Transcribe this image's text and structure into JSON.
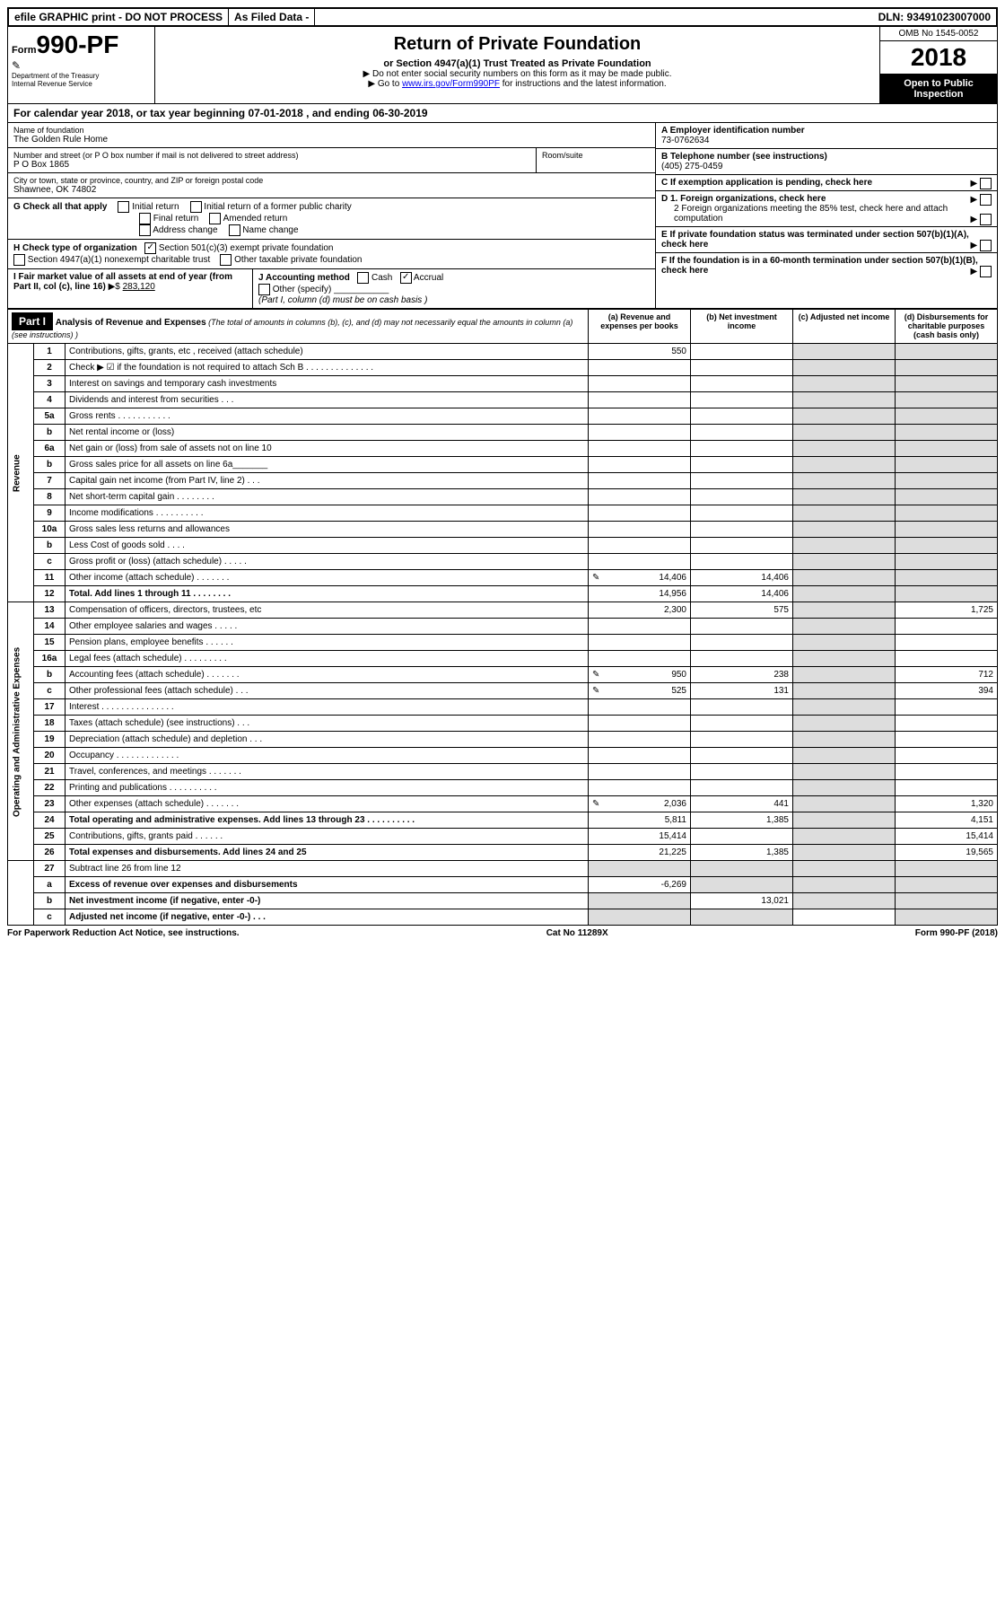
{
  "topbar": {
    "left": "efile GRAPHIC print - DO NOT PROCESS",
    "mid": "As Filed Data -",
    "right": "DLN: 93491023007000"
  },
  "header": {
    "form_prefix": "Form",
    "form_num": "990-PF",
    "dept1": "Department of the Treasury",
    "dept2": "Internal Revenue Service",
    "title": "Return of Private Foundation",
    "subtitle": "or Section 4947(a)(1) Trust Treated as Private Foundation",
    "warn": "▶ Do not enter social security numbers on this form as it may be made public.",
    "goto_prefix": "▶ Go to ",
    "goto_link": "www.irs.gov/Form990PF",
    "goto_suffix": " for instructions and the latest information.",
    "omb": "OMB No 1545-0052",
    "year": "2018",
    "public": "Open to Public Inspection"
  },
  "calyear": {
    "text1": "For calendar year 2018, or tax year beginning ",
    "begin": "07-01-2018",
    "text2": " , and ending ",
    "end": "06-30-2019"
  },
  "org": {
    "name_label": "Name of foundation",
    "name": "The Golden Rule Home",
    "addr_label": "Number and street (or P O  box number if mail is not delivered to street address)",
    "addr": "P O Box 1865",
    "room_label": "Room/suite",
    "city_label": "City or town, state or province, country, and ZIP or foreign postal code",
    "city": "Shawnee, OK  74802"
  },
  "right": {
    "A_label": "A Employer identification number",
    "A_val": "73-0762634",
    "B_label": "B Telephone number (see instructions)",
    "B_val": "(405) 275-0459",
    "C_label": "C If exemption application is pending, check here",
    "D1": "D 1. Foreign organizations, check here",
    "D2a": "2 Foreign organizations meeting the 85% test, check here and attach computation",
    "E": "E  If private foundation status was terminated under section 507(b)(1)(A), check here",
    "F": "F  If the foundation is in a 60-month termination under section 507(b)(1)(B), check here"
  },
  "G": {
    "label": "G Check all that apply",
    "opts": [
      "Initial return",
      "Initial return of a former public charity",
      "Final return",
      "Amended return",
      "Address change",
      "Name change"
    ]
  },
  "H": {
    "label": "H Check type of organization",
    "opt1": "Section 501(c)(3) exempt private foundation",
    "opt2": "Section 4947(a)(1) nonexempt charitable trust",
    "opt3": "Other taxable private foundation"
  },
  "I": {
    "label1": "I Fair market value of all assets at end of year (from Part II, col  (c), line 16)",
    "val_label": "▶$ ",
    "val": "283,120"
  },
  "J": {
    "label": "J Accounting method",
    "cash": "Cash",
    "accrual": "Accrual",
    "other": "Other (specify)",
    "note": "(Part I, column (d) must be on cash basis )"
  },
  "part1": {
    "tab": "Part I",
    "title": "Analysis of Revenue and Expenses",
    "note": " (The total of amounts in columns (b), (c), and (d) may not necessarily equal the amounts in column (a) (see instructions) )",
    "col_a": "(a) Revenue and expenses per books",
    "col_b": "(b) Net investment income",
    "col_c": "(c) Adjusted net income",
    "col_d": "(d) Disbursements for charitable purposes (cash basis only)"
  },
  "side_rev": "Revenue",
  "side_exp": "Operating and Administrative Expenses",
  "rows": [
    {
      "n": "1",
      "d": "Contributions, gifts, grants, etc , received (attach schedule)",
      "a": "550"
    },
    {
      "n": "2",
      "d": "Check ▶ ☑ if the foundation is not required to attach Sch  B   .  .  .  .  .  .  .  .  .  .  .  .  .  ."
    },
    {
      "n": "3",
      "d": "Interest on savings and temporary cash investments"
    },
    {
      "n": "4",
      "d": "Dividends and interest from securities   .  .  ."
    },
    {
      "n": "5a",
      "d": "Gross rents   .  .  .  .  .  .  .  .  .  .  ."
    },
    {
      "n": "b",
      "d": "Net rental income or (loss)  "
    },
    {
      "n": "6a",
      "d": "Net gain or (loss) from sale of assets not on line 10"
    },
    {
      "n": "b",
      "d": "Gross sales price for all assets on line 6a_______"
    },
    {
      "n": "7",
      "d": "Capital gain net income (from Part IV, line 2)  .  .  ."
    },
    {
      "n": "8",
      "d": "Net short-term capital gain  .  .  .  .  .  .  .  ."
    },
    {
      "n": "9",
      "d": "Income modifications .  .  .  .  .  .  .  .  .  ."
    },
    {
      "n": "10a",
      "d": "Gross sales less returns and allowances"
    },
    {
      "n": "b",
      "d": "Less  Cost of goods sold  .  .  .  ."
    },
    {
      "n": "c",
      "d": "Gross profit or (loss) (attach schedule)   .  .  .  .  ."
    },
    {
      "n": "11",
      "d": "Other income (attach schedule)   .  .  .  .  .  .  .",
      "a": "14,406",
      "b": "14,406",
      "icon": true
    },
    {
      "n": "12",
      "d": "Total. Add lines 1 through 11   .  .  .  .  .  .  .  .",
      "a": "14,956",
      "b": "14,406",
      "bold": true
    }
  ],
  "exp_rows": [
    {
      "n": "13",
      "d": "Compensation of officers, directors, trustees, etc",
      "a": "2,300",
      "b": "575",
      "dd": "1,725"
    },
    {
      "n": "14",
      "d": "Other employee salaries and wages   .  .  .  .  ."
    },
    {
      "n": "15",
      "d": "Pension plans, employee benefits  .  .  .  .  .  ."
    },
    {
      "n": "16a",
      "d": "Legal fees (attach schedule) .  .  .  .  .  .  .  .  ."
    },
    {
      "n": "b",
      "d": "Accounting fees (attach schedule) .  .  .  .  .  .  .",
      "a": "950",
      "b": "238",
      "dd": "712",
      "icon": true
    },
    {
      "n": "c",
      "d": "Other professional fees (attach schedule)   .  .  .",
      "a": "525",
      "b": "131",
      "dd": "394",
      "icon": true
    },
    {
      "n": "17",
      "d": "Interest  .  .  .  .  .  .  .  .  .  .  .  .  .  .  ."
    },
    {
      "n": "18",
      "d": "Taxes (attach schedule) (see instructions)   .  .  ."
    },
    {
      "n": "19",
      "d": "Depreciation (attach schedule) and depletion  .  .  ."
    },
    {
      "n": "20",
      "d": "Occupancy   .  .  .  .  .  .  .  .  .  .  .  .  ."
    },
    {
      "n": "21",
      "d": "Travel, conferences, and meetings .  .  .  .  .  .  ."
    },
    {
      "n": "22",
      "d": "Printing and publications .  .  .  .  .  .  .  .  .  ."
    },
    {
      "n": "23",
      "d": "Other expenses (attach schedule) .  .  .  .  .  .  .",
      "a": "2,036",
      "b": "441",
      "dd": "1,320",
      "icon": true
    },
    {
      "n": "24",
      "d": "Total operating and administrative expenses. Add lines 13 through 23  .  .  .  .  .  .  .  .  .  .",
      "a": "5,811",
      "b": "1,385",
      "dd": "4,151",
      "bold": true
    },
    {
      "n": "25",
      "d": "Contributions, gifts, grants paid   .  .  .  .  .  .",
      "a": "15,414",
      "dd": "15,414"
    },
    {
      "n": "26",
      "d": "Total expenses and disbursements. Add lines 24 and 25",
      "a": "21,225",
      "b": "1,385",
      "dd": "19,565",
      "bold": true
    }
  ],
  "bottom_rows": [
    {
      "n": "27",
      "d": "Subtract line 26 from line 12"
    },
    {
      "n": "a",
      "d": "Excess of revenue over expenses and disbursements",
      "a": "-6,269",
      "bold": true
    },
    {
      "n": "b",
      "d": "Net investment income (if negative, enter -0-)",
      "b": "13,021",
      "bold": true
    },
    {
      "n": "c",
      "d": "Adjusted net income (if negative, enter -0-)  .  .  .",
      "bold": true
    }
  ],
  "footer": {
    "left": "For Paperwork Reduction Act Notice, see instructions.",
    "mid": "Cat  No  11289X",
    "right": "Form 990-PF (2018)"
  }
}
